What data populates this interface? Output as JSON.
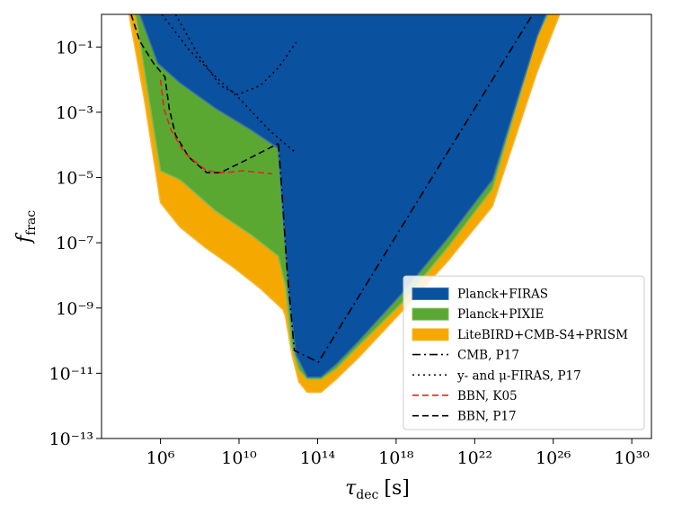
{
  "chart_data": {
    "type": "area",
    "x_label": {
      "symbol": "τ",
      "subscript": "dec",
      "unit": "[s]"
    },
    "y_label": {
      "symbol": "f",
      "subscript": "frac"
    },
    "log_x": true,
    "log_y": true,
    "xlim": [
      1000.0,
      1e+31
    ],
    "ylim": [
      1e-13,
      1
    ],
    "xticks": [
      {
        "value": 1000000.0,
        "label": "10⁶"
      },
      {
        "value": 10000000000.0,
        "label": "10¹⁰"
      },
      {
        "value": 100000000000000.0,
        "label": "10¹⁴"
      },
      {
        "value": 1e+18,
        "label": "10¹⁸"
      },
      {
        "value": 1e+22,
        "label": "10²²"
      },
      {
        "value": 1e+26,
        "label": "10²⁶"
      },
      {
        "value": 1e+30,
        "label": "10³⁰"
      }
    ],
    "yticks": [
      {
        "value": 1e-13,
        "label": "10⁻¹³"
      },
      {
        "value": 1e-11,
        "label": "10⁻¹¹"
      },
      {
        "value": 1e-09,
        "label": "10⁻⁹"
      },
      {
        "value": 1e-07,
        "label": "10⁻⁷"
      },
      {
        "value": 1e-05,
        "label": "10⁻⁵"
      },
      {
        "value": 0.001,
        "label": "10⁻³"
      },
      {
        "value": 0.1,
        "label": "10⁻¹"
      }
    ],
    "legend": "lower right",
    "series": [
      {
        "name": "Planck+FIRAS",
        "kind": "area",
        "color": "#0a51a0",
        "edge": "#3b6fb0",
        "x": [
          89000.0,
          720000.0,
          10000000.0,
          660000000.0,
          44000000000.0,
          1000000000000.0,
          1900000000000.0,
          3500000000000.0,
          8100000000000.0,
          30000000000000.0,
          150000000000000.0,
          900000000000000.0,
          1.2e+16,
          2.3e+18,
          4.4e+20,
          8e+22,
          1.5e+25,
          4.4e+25
        ],
        "values": [
          1,
          0.032,
          0.0079,
          0.0013,
          0.00028,
          7.8e-05,
          3.5e-07,
          2.2e-09,
          3.6e-11,
          7.6e-12,
          7.6e-12,
          1.9e-11,
          9.5e-11,
          3.1e-09,
          1.4e-07,
          8.5e-06,
          0.21,
          1
        ]
      },
      {
        "name": "Planck+PIXIE",
        "kind": "area",
        "color": "#5aa832",
        "edge": "#7cbc5c",
        "x": [
          54000.0,
          260000.0,
          1000000.0,
          10000000.0,
          660000000.0,
          44000000000.0,
          1000000000000.0,
          2300000000000.0,
          4800000000000.0,
          11000000000000.0,
          30000000000000.0,
          150000000000000.0,
          900000000000000.0,
          1.2e+16,
          2.3e+18,
          4.4e+20,
          8e+22,
          1.5e+25,
          5.4e+25
        ],
        "values": [
          1,
          0.0025,
          1.6e-05,
          8.5e-06,
          9.3e-07,
          1.7e-07,
          3.9e-08,
          4.8e-09,
          6.9e-11,
          1.3e-11,
          6.6e-12,
          6.6e-12,
          1.4e-11,
          6.9e-11,
          1.6e-09,
          7.4e-08,
          4.5e-06,
          0.21,
          1
        ]
      },
      {
        "name": "LiteBIRD+CMB-S4+PRISM",
        "kind": "area",
        "color": "#f5a800",
        "edge": "#f7b733",
        "x": [
          25000.0,
          150000.0,
          1000000.0,
          10000000.0,
          200000000.0,
          5000000000.0,
          120000000000.0,
          1700000000000.0,
          2300000000000.0,
          5000000000000.0,
          11000000000000.0,
          30000000000000.0,
          150000000000000.0,
          900000000000000.0,
          1.2e+16,
          2.3e+18,
          4.4e+20,
          8e+22,
          1.5e+25,
          2.1e+26
        ],
        "values": [
          1,
          0.0025,
          1.7e-06,
          3e-07,
          7e-08,
          1.8e-08,
          4e-09,
          9e-10,
          5.6e-10,
          3.6e-11,
          5.5e-12,
          2.6e-12,
          2.6e-12,
          6.6e-12,
          3e-11,
          8.7e-10,
          2.8e-08,
          1.3e-06,
          0.017,
          1
        ]
      },
      {
        "name": "CMB, P17",
        "kind": "dashdot",
        "color": "#000000",
        "x": [
          1000000000000.0,
          1400000000000.0,
          2800000000000.0,
          6600000000000.0,
          110000000000000.0,
          8.9e+24
        ],
        "values": [
          0.00011,
          8.5e-06,
          1.5e-08,
          5e-11,
          2.2e-11,
          1
        ]
      },
      {
        "name": "y- and μ-FIRAS, P17",
        "kind": "dotted",
        "color": "#000000",
        "x": [
          1200000.0,
          28000000.0,
          660000000.0,
          9000000000.0,
          350000000000.0,
          8100000000000.0,
          10000000000000.0,
          5900000.0,
          81000000.0,
          1100000000.0,
          9000000000.0,
          120000000000.0,
          1000000000000.0,
          8100000000000.0
        ],
        "values": [
          1,
          0.083,
          0.012,
          0.0029,
          0.00028,
          5.6e-05,
          null,
          1,
          0.06,
          0.0066,
          0.0035,
          0.0066,
          0.023,
          0.14
        ]
      },
      {
        "name": "BBN, K05",
        "kind": "dashed",
        "color": "#e8231a",
        "x": [
          1000000.0,
          1500000.0,
          3500000.0,
          17000000.0,
          230000000.0,
          1900000000.0,
          15000000000.0,
          480000000000.0
        ],
        "values": [
          0.01,
          0.0013,
          0.00028,
          5.6e-05,
          1.6e-05,
          1.4e-05,
          1.6e-05,
          1.3e-05
        ]
      },
      {
        "name": "BBN, P17",
        "kind": "dashed",
        "color": "#000000",
        "x": [
          32000.0,
          89000.0,
          440000.0,
          1700000.0,
          2800000.0,
          5900000.0,
          28000000.0,
          230000000.0,
          1100000000.0,
          15000000000.0,
          1000000000000.0
        ],
        "values": [
          1,
          0.15,
          0.032,
          0.012,
          0.0013,
          0.0002,
          4.2e-05,
          1.4e-05,
          1.4e-05,
          3e-05,
          0.00011
        ]
      }
    ]
  }
}
